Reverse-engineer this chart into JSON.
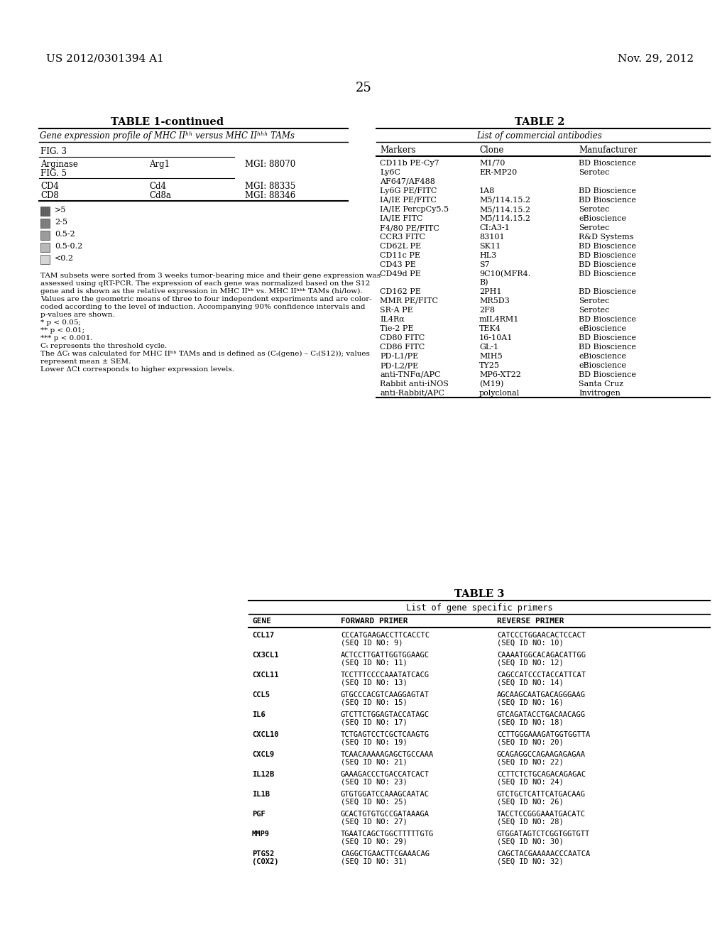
{
  "header_left": "US 2012/0301394 A1",
  "header_right": "Nov. 29, 2012",
  "page_number": "25",
  "bg_color": "#ffffff",
  "text_color": "#000000",
  "table1_title": "TABLE 1-continued",
  "table1_subtitle": "Gene expression profile of MHC IIʰʰ versus MHC IIʰʰʰ TAMs",
  "table2_title": "TABLE 2",
  "table2_subtitle": "List of commercial antibodies",
  "table2_cols": [
    "Markers",
    "Clone",
    "Manufacturer"
  ],
  "table2_data": [
    [
      "CD11b PE-Cy7",
      "M1/70",
      "BD Bioscience"
    ],
    [
      "Ly6C",
      "ER-MP20",
      "Serotec"
    ],
    [
      "AF647/AF488",
      "",
      ""
    ],
    [
      "Ly6G PE/FITC",
      "1A8",
      "BD Bioscience"
    ],
    [
      "IA/IE PE/FITC",
      "M5/114.15.2",
      "BD Bioscience"
    ],
    [
      "IA/IE PercpCy5.5",
      "M5/114.15.2",
      "Serotec"
    ],
    [
      "IA/IE FITC",
      "M5/114.15.2",
      "eBioscience"
    ],
    [
      "F4/80 PE/FITC",
      "CI:A3-1",
      "Serotec"
    ],
    [
      "CCR3 FITC",
      "83101",
      "R&D Systems"
    ],
    [
      "CD62L PE",
      "SK11",
      "BD Bioscience"
    ],
    [
      "CD11c PE",
      "HL3",
      "BD Bioscience"
    ],
    [
      "CD43 PE",
      "S7",
      "BD Bioscience"
    ],
    [
      "CD49d PE",
      "9C10(MFR4.\nB)",
      "BD Bioscience"
    ],
    [
      "CD162 PE",
      "2PH1",
      "BD Bioscience"
    ],
    [
      "MMR PE/FITC",
      "MR5D3",
      "Serotec"
    ],
    [
      "SR-A PE",
      "2F8",
      "Serotec"
    ],
    [
      "IL4Rα",
      "mIL4RM1",
      "BD Bioscience"
    ],
    [
      "Tie-2 PE",
      "TEK4",
      "eBioscience"
    ],
    [
      "CD80 FITC",
      "16-10A1",
      "BD Bioscience"
    ],
    [
      "CD86 FITC",
      "GL-1",
      "BD Bioscience"
    ],
    [
      "PD-L1/PE",
      "MIH5",
      "eBioscience"
    ],
    [
      "PD-L2/PE",
      "TY25",
      "eBioscience"
    ],
    [
      "anti-TNFα/APC",
      "MP6-XT22",
      "BD Bioscience"
    ],
    [
      "Rabbit anti-iNOS",
      "(M19)",
      "Santa Cruz"
    ],
    [
      "anti-Rabbit/APC",
      "polyclonal",
      "Invitrogen"
    ]
  ],
  "table3_title": "TABLE 3",
  "table3_subtitle": "List of gene specific primers",
  "table3_cols": [
    "GENE",
    "FORWARD PRIMER",
    "REVERSE PRIMER"
  ],
  "table3_data": [
    [
      "CCL17",
      "CCCATGAAGACCTTCACCTC\n(SEQ ID NO: 9)",
      "CATCCCTGGAACACTCCACT\n(SEQ ID NO: 10)"
    ],
    [
      "CX3CL1",
      "ACTCCTTGATTGGTGGAAGC\n(SEQ ID NO: 11)",
      "CAAAATGGCACAGACATTGG\n(SEQ ID NO: 12)"
    ],
    [
      "CXCL11",
      "TCCTTTCCCCAAATATCACG\n(SEQ ID NO: 13)",
      "CAGCCATCCCTACCATTCAT\n(SEQ ID NO: 14)"
    ],
    [
      "CCL5",
      "GTGCCCACGTCAAGGAGTAT\n(SEQ ID NO: 15)",
      "AGCAAGCAATGACAGGGAAG\n(SEQ ID NO: 16)"
    ],
    [
      "IL6",
      "GTCTTCTGGAGTACCATAGC\n(SEQ ID NO: 17)",
      "GTCAGATACCTGACAACAGG\n(SEQ ID NO: 18)"
    ],
    [
      "CXCL10",
      "TCTGAGTCCTCGCTCAAGTG\n(SEQ ID NO: 19)",
      "CCTTGGGAAAGATGGTGGTTA\n(SEQ ID NO: 20)"
    ],
    [
      "CXCL9",
      "TCAACAAAAAGAGCTGCCAAA\n(SEQ ID NO: 21)",
      "GCAGAGGCCAGAAGAGAGAA\n(SEQ ID NO: 22)"
    ],
    [
      "IL12B",
      "GAAAGACCCTGACCATCACT\n(SEQ ID NO: 23)",
      "CCTTCTCTGCAGACAGAGAC\n(SEQ ID NO: 24)"
    ],
    [
      "IL1B",
      "GTGTGGATCCAAAGCAATAC\n(SEQ ID NO: 25)",
      "GTCTGCTCATTCATGACAAG\n(SEQ ID NO: 26)"
    ],
    [
      "PGF",
      "GCACTGTGTGCCGATAAAGA\n(SEQ ID NO: 27)",
      "TACCTCCGGGAAATGACATC\n(SEQ ID NO: 28)"
    ],
    [
      "MMP9",
      "TGAATCAGCTGGCTTTTTGTG\n(SEQ ID NO: 29)",
      "GTGGATAGTCTCGGTGGTGTT\n(SEQ ID NO: 30)"
    ],
    [
      "PTGS2\n(COX2)",
      "CAGGCTGAACTTCGAAACAG\n(SEQ ID NO: 31)",
      "CAGCTACGAAAAACCCAATCA\n(SEQ ID NO: 32)"
    ]
  ],
  "legend_items": [
    [
      ">5",
      "#555555"
    ],
    [
      "2-5",
      "#777777"
    ],
    [
      "0.5-2",
      "#999999"
    ],
    [
      "0.5-0.2",
      "#bbbbbb"
    ],
    [
      "<0.2",
      "#dddddd"
    ]
  ],
  "footnotes": [
    "TAM subsets were sorted from 3 weeks tumor-bearing mice and their gene expression was",
    "assessed using qRT-PCR. The expression of each gene was normalized based on the S12",
    "gene and is shown as the relative expression in MHC IIʰʰ vs. MHC IIʰʰʰ TAMs (hi/low).",
    "Values are the geometric means of three to four independent experiments and are color-",
    "coded according to the level of induction. Accompanying 90% confidence intervals and",
    "p-values are shown.",
    "* p < 0.05;",
    "** p < 0.01;",
    "*** p < 0.001.",
    "Cₜ represents the threshold cycle.",
    "The ΔCₜ was calculated for MHC IIʰʰ TAMs and is defined as (Cₜ(gene) – Cₜ(S12)); values",
    "represent mean ± SEM.",
    "Lower ΔCt corresponds to higher expression levels."
  ]
}
